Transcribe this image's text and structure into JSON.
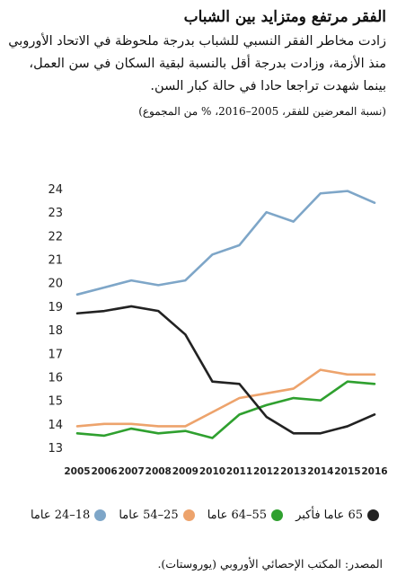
{
  "header": {
    "title": "الفقر مرتفع ومتزايد بين الشباب",
    "subtitle": "زادت مخاطر الفقر النسبي للشباب بدرجة ملحوظة في الاتحاد الأوروبي منذ الأزمة، وزادت بدرجة أقل بالنسبة لبقية السكان في سن العمل، بينما شهدت تراجعا حادا في حالة كبار السن.",
    "note": "(نسبة المعرضين للفقر، 2005–2016، % من المجموع)"
  },
  "source": "المصدر: المكتب الإحصائي الأوروبي (يوروستات).",
  "chart_data": {
    "type": "line",
    "x": [
      2005,
      2006,
      2007,
      2008,
      2009,
      2010,
      2011,
      2012,
      2013,
      2014,
      2015,
      2016
    ],
    "ylim": [
      13,
      24
    ],
    "yticks": [
      13,
      14,
      15,
      16,
      17,
      18,
      19,
      20,
      21,
      22,
      23,
      24
    ],
    "grid": false,
    "legend_position": "bottom",
    "series": [
      {
        "name": "18–24 عاما",
        "color": "#7ea6c8",
        "values": [
          19.5,
          19.8,
          20.1,
          19.9,
          20.1,
          21.2,
          21.6,
          23.0,
          22.6,
          23.8,
          23.9,
          23.4
        ]
      },
      {
        "name": "25–54 عاما",
        "color": "#eda36c",
        "values": [
          13.9,
          14.0,
          14.0,
          13.9,
          13.9,
          14.5,
          15.1,
          15.3,
          15.5,
          16.3,
          16.1,
          16.1
        ]
      },
      {
        "name": "55–64 عاما",
        "color": "#2fa02f",
        "values": [
          13.6,
          13.5,
          13.8,
          13.6,
          13.7,
          13.4,
          14.4,
          14.8,
          15.1,
          15.0,
          15.8,
          15.7
        ]
      },
      {
        "name": "65 عاما فأكبر",
        "color": "#222222",
        "values": [
          18.7,
          18.8,
          19.0,
          18.8,
          17.8,
          15.8,
          15.7,
          14.3,
          13.6,
          13.6,
          13.9,
          14.4
        ]
      }
    ]
  }
}
